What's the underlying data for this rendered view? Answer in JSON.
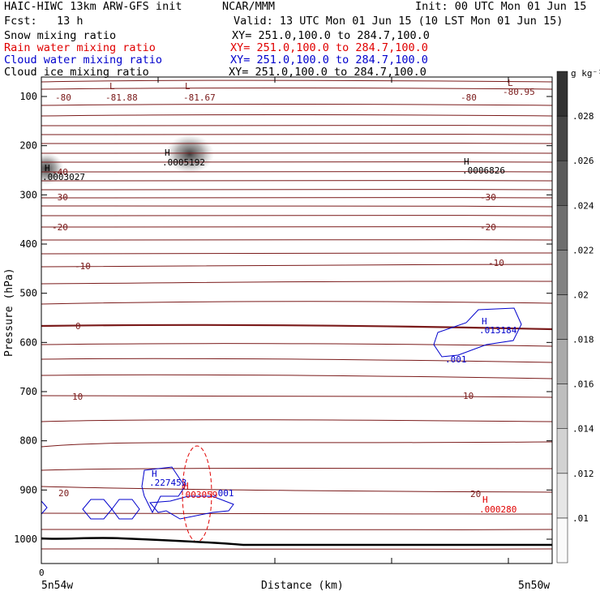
{
  "header": {
    "model_title": "HAIC-HIWC 13km ARW-GFS init",
    "org": "NCAR/MMM",
    "init": "Init: 00 UTC Mon 01 Jun 15",
    "fcst": "Fcst:   13 h",
    "valid": "Valid: 13 UTC Mon 01 Jun 15 (10 LST Mon 01 Jun 15)"
  },
  "fields": [
    {
      "name": "Snow mixing ratio",
      "xy": "XY= 251.0,100.0 to 284.7,100.0",
      "color": "#000000"
    },
    {
      "name": "Rain water mixing ratio",
      "xy": "XY= 251.0,100.0 to 284.7,100.0",
      "color": "#e00000"
    },
    {
      "name": "Cloud water mixing ratio",
      "xy": "XY= 251.0,100.0 to 284.7,100.0",
      "color": "#0000cc"
    },
    {
      "name": "Cloud ice mixing ratio",
      "xy": "XY= 251.0,100.0 to 284.7,100.0",
      "color": "#000000"
    }
  ],
  "chart_data": {
    "type": "cross-section contour",
    "xlabel": "Distance (km)",
    "ylabel": "Pressure (hPa)",
    "x_ticks": {
      "zero": "0",
      "left": "5n54w",
      "right": "5n50w"
    },
    "y_ticks": [
      "100",
      "200",
      "300",
      "400",
      "500",
      "600",
      "700",
      "800",
      "900",
      "1000"
    ],
    "y_range": [
      50,
      1050
    ],
    "colorbar": {
      "unit": "g kg⁻¹",
      "ticks": [
        ".01",
        ".012",
        ".014",
        ".016",
        ".018",
        ".02",
        ".022",
        ".024",
        ".026",
        ".028"
      ]
    },
    "temperature_contours": {
      "color": "#7a1a1a",
      "labels": [
        "-80",
        "-81.88",
        "-81.67",
        "-80",
        "-80.95",
        "-40",
        "-30",
        "-30",
        "-20",
        "-20",
        "-10",
        "-10",
        "0",
        "10",
        "10",
        "20",
        "20"
      ]
    },
    "extrema": [
      {
        "symbol": "L",
        "value": "-81.88",
        "color": "#7a1a1a"
      },
      {
        "symbol": "L",
        "value": "-81.67",
        "color": "#7a1a1a"
      },
      {
        "symbol": "L",
        "value": "-80.95",
        "color": "#7a1a1a"
      },
      {
        "symbol": "H",
        "value": ".0003027",
        "color": "#000000"
      },
      {
        "symbol": "H",
        "value": ".0005192",
        "color": "#000000"
      },
      {
        "symbol": "H",
        "value": ".0006826",
        "color": "#000000"
      },
      {
        "symbol": "H",
        "value": ".013184",
        "color": "#0000cc"
      },
      {
        "symbol": "H",
        "value": ".227453",
        "color": "#0000cc"
      },
      {
        "symbol": "H",
        "value": ".003059",
        "color": "#e00000"
      },
      {
        "symbol": "H",
        "value": ".000280",
        "color": "#e00000"
      }
    ],
    "cloud_water_contour_labels": [
      ".001",
      ".001"
    ]
  }
}
